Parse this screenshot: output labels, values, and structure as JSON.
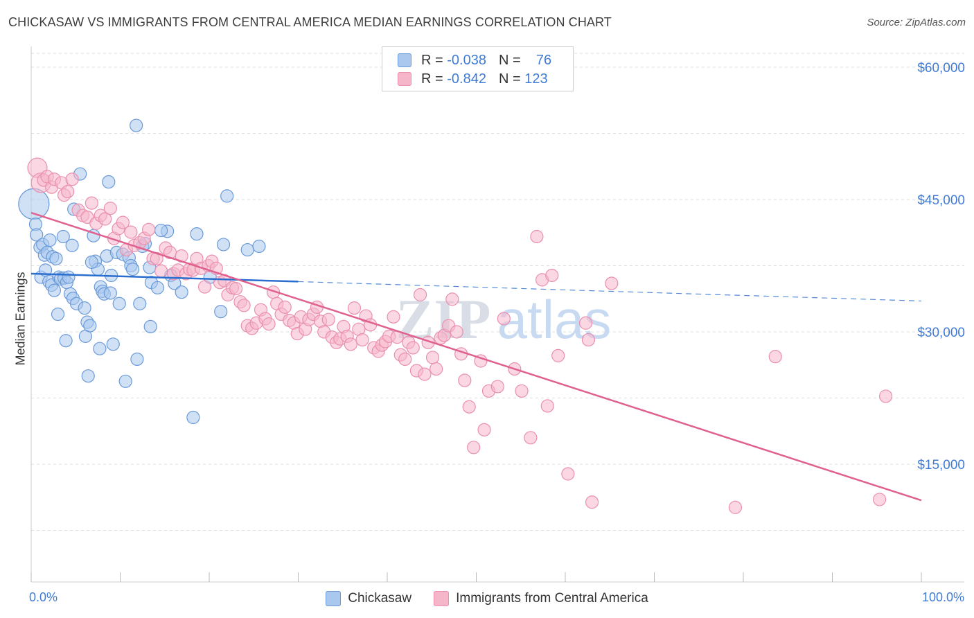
{
  "header": {
    "title": "CHICKASAW VS IMMIGRANTS FROM CENTRAL AMERICA MEDIAN EARNINGS CORRELATION CHART",
    "source": "Source: ZipAtlas.com"
  },
  "legend": {
    "rows": [
      {
        "r_label": "R =",
        "r_value": "-0.038",
        "n_label": "N =",
        "n_value": "76"
      },
      {
        "r_label": "R =",
        "r_value": "-0.842",
        "n_label": "N =",
        "n_value": "123"
      }
    ]
  },
  "bottom_legend": {
    "items": [
      {
        "label": "Chickasaw"
      },
      {
        "label": "Immigrants from Central America"
      }
    ]
  },
  "colors": {
    "blue_fill": "#aac8ee",
    "blue_stroke": "#6a9ad8",
    "blue_line": "#2a6fd0",
    "pink_fill": "#f6b6ca",
    "pink_stroke": "#ea8fae",
    "pink_line": "#e0608f",
    "tick_text": "#3f7bd6",
    "grid": "#dddddd"
  },
  "watermark": {
    "part1": "ZIP",
    "part2": "atlas"
  },
  "chart_data": {
    "type": "scatter",
    "title": "CHICKASAW VS IMMIGRANTS FROM CENTRAL AMERICA MEDIAN EARNINGS CORRELATION CHART",
    "xlabel": "",
    "ylabel": "Median Earnings",
    "x_tick_labels": [
      "0.0%",
      "100.0%"
    ],
    "y_tick_labels": [
      "$15,000",
      "$30,000",
      "$45,000",
      "$60,000"
    ],
    "y_ticks": [
      15000,
      30000,
      45000,
      60000
    ],
    "xlim": [
      0,
      100
    ],
    "ylim": [
      0,
      63000
    ],
    "grid": true,
    "legend_position": "top-center",
    "series": [
      {
        "name": "Chickasaw",
        "R": -0.038,
        "N": 76,
        "trend": {
          "x0": 0,
          "y0": 36600,
          "x1": 30,
          "y1": 35700,
          "dashed_to_x": 100,
          "dashed_y1": 33500
        },
        "points": [
          [
            0.3,
            44500,
            3
          ],
          [
            0.5,
            42200,
            1
          ],
          [
            0.6,
            41000,
            1
          ],
          [
            1.0,
            39600,
            1
          ],
          [
            1.1,
            36200,
            1
          ],
          [
            1.3,
            39900,
            1
          ],
          [
            1.5,
            38700,
            1
          ],
          [
            1.6,
            37000,
            1
          ],
          [
            1.8,
            39000,
            1
          ],
          [
            2.0,
            35700,
            1
          ],
          [
            2.1,
            40400,
            1
          ],
          [
            2.3,
            35300,
            1
          ],
          [
            2.4,
            38500,
            1
          ],
          [
            2.6,
            34700,
            1
          ],
          [
            2.8,
            38300,
            1
          ],
          [
            3.0,
            32000,
            1
          ],
          [
            3.1,
            36200,
            1
          ],
          [
            3.3,
            36000,
            1
          ],
          [
            3.6,
            40800,
            1
          ],
          [
            3.7,
            36100,
            1
          ],
          [
            3.9,
            29000,
            1
          ],
          [
            4.0,
            35600,
            1
          ],
          [
            4.2,
            36200,
            1
          ],
          [
            4.4,
            34300,
            1
          ],
          [
            4.6,
            39800,
            1
          ],
          [
            4.7,
            33800,
            1
          ],
          [
            4.8,
            43900,
            1
          ],
          [
            5.1,
            33200,
            1
          ],
          [
            5.5,
            47900,
            1
          ],
          [
            6.0,
            32700,
            1
          ],
          [
            6.1,
            29500,
            1
          ],
          [
            6.3,
            31100,
            1
          ],
          [
            6.4,
            25000,
            1
          ],
          [
            6.6,
            30700,
            1
          ],
          [
            7.0,
            40900,
            1
          ],
          [
            7.2,
            38000,
            1
          ],
          [
            7.5,
            37100,
            1
          ],
          [
            7.7,
            28100,
            1
          ],
          [
            7.8,
            35100,
            1
          ],
          [
            8.0,
            34600,
            1
          ],
          [
            8.2,
            34300,
            1
          ],
          [
            8.5,
            38600,
            1
          ],
          [
            8.7,
            47000,
            1
          ],
          [
            8.9,
            34400,
            1
          ],
          [
            9.2,
            28600,
            1
          ],
          [
            9.6,
            39000,
            1
          ],
          [
            9.9,
            33200,
            1
          ],
          [
            10.3,
            38800,
            1
          ],
          [
            10.6,
            24400,
            1
          ],
          [
            11.0,
            38400,
            1
          ],
          [
            11.2,
            37500,
            1
          ],
          [
            11.4,
            37100,
            1
          ],
          [
            11.8,
            53400,
            1
          ],
          [
            11.9,
            26900,
            1
          ],
          [
            12.2,
            33200,
            1
          ],
          [
            12.5,
            39700,
            1
          ],
          [
            12.8,
            40000,
            1
          ],
          [
            13.3,
            37300,
            1
          ],
          [
            13.4,
            30600,
            1
          ],
          [
            13.5,
            35600,
            1
          ],
          [
            14.2,
            35000,
            1
          ],
          [
            15.3,
            41400,
            1
          ],
          [
            15.7,
            36400,
            1
          ],
          [
            16.1,
            35500,
            1
          ],
          [
            16.9,
            34500,
            1
          ],
          [
            18.2,
            20300,
            1
          ],
          [
            18.6,
            41100,
            1
          ],
          [
            20.1,
            36200,
            1
          ],
          [
            21.3,
            32300,
            1
          ],
          [
            21.6,
            39900,
            1
          ],
          [
            22.0,
            45400,
            1
          ],
          [
            24.3,
            39300,
            1
          ],
          [
            25.6,
            39700,
            1
          ],
          [
            14.6,
            41500,
            1
          ],
          [
            6.8,
            37900,
            1
          ],
          [
            9.0,
            36400,
            1
          ]
        ]
      },
      {
        "name": "Immigrants from Central America",
        "R": -0.842,
        "N": 123,
        "trend": {
          "x0": 0,
          "y0": 43500,
          "x1": 100,
          "y1": 10900
        },
        "points": [
          [
            0.7,
            48600,
            2
          ],
          [
            1.1,
            46900,
            2
          ],
          [
            1.4,
            47200,
            1
          ],
          [
            1.8,
            47600,
            1
          ],
          [
            2.3,
            46400,
            1
          ],
          [
            2.6,
            47300,
            1
          ],
          [
            3.4,
            46900,
            1
          ],
          [
            3.7,
            45500,
            1
          ],
          [
            4.1,
            45900,
            1
          ],
          [
            4.6,
            47300,
            1
          ],
          [
            5.3,
            43800,
            1
          ],
          [
            5.8,
            43200,
            1
          ],
          [
            6.3,
            43000,
            1
          ],
          [
            6.8,
            44600,
            1
          ],
          [
            7.3,
            42300,
            1
          ],
          [
            7.8,
            43200,
            1
          ],
          [
            8.3,
            42800,
            1
          ],
          [
            8.9,
            44000,
            1
          ],
          [
            9.3,
            40600,
            1
          ],
          [
            9.8,
            41700,
            1
          ],
          [
            10.3,
            42400,
            1
          ],
          [
            10.7,
            39300,
            1
          ],
          [
            11.2,
            41300,
            1
          ],
          [
            11.6,
            39800,
            1
          ],
          [
            12.2,
            40100,
            1
          ],
          [
            12.7,
            40600,
            1
          ],
          [
            13.2,
            41600,
            1
          ],
          [
            13.7,
            38300,
            1
          ],
          [
            14.1,
            38300,
            1
          ],
          [
            14.6,
            36900,
            1
          ],
          [
            15.1,
            39500,
            1
          ],
          [
            15.6,
            39000,
            1
          ],
          [
            16.0,
            36600,
            1
          ],
          [
            16.5,
            37000,
            1
          ],
          [
            16.9,
            38600,
            1
          ],
          [
            17.4,
            36600,
            1
          ],
          [
            17.8,
            37100,
            1
          ],
          [
            18.2,
            37000,
            1
          ],
          [
            18.6,
            38300,
            1
          ],
          [
            19.1,
            37200,
            1
          ],
          [
            19.5,
            35100,
            1
          ],
          [
            19.9,
            37500,
            1
          ],
          [
            20.3,
            38000,
            1
          ],
          [
            20.8,
            37200,
            1
          ],
          [
            21.2,
            35600,
            1
          ],
          [
            21.7,
            35800,
            1
          ],
          [
            22.1,
            34200,
            1
          ],
          [
            22.6,
            35000,
            1
          ],
          [
            23.0,
            34900,
            1
          ],
          [
            23.5,
            33400,
            1
          ],
          [
            23.9,
            33000,
            1
          ],
          [
            24.3,
            30700,
            1
          ],
          [
            24.8,
            30400,
            1
          ],
          [
            25.3,
            31000,
            1
          ],
          [
            25.8,
            32500,
            1
          ],
          [
            26.3,
            31500,
            1
          ],
          [
            26.7,
            30900,
            1
          ],
          [
            27.2,
            34500,
            1
          ],
          [
            27.6,
            33200,
            1
          ],
          [
            28.1,
            32000,
            1
          ],
          [
            28.5,
            32800,
            1
          ],
          [
            29.0,
            31300,
            1
          ],
          [
            29.5,
            31000,
            1
          ],
          [
            29.9,
            29800,
            1
          ],
          [
            30.3,
            31700,
            1
          ],
          [
            30.8,
            30300,
            1
          ],
          [
            31.2,
            31400,
            1
          ],
          [
            31.7,
            32000,
            1
          ],
          [
            32.1,
            32800,
            1
          ],
          [
            32.5,
            31200,
            1
          ],
          [
            32.9,
            30000,
            1
          ],
          [
            33.4,
            31400,
            1
          ],
          [
            33.8,
            29400,
            1
          ],
          [
            34.3,
            28800,
            1
          ],
          [
            34.7,
            29200,
            1
          ],
          [
            35.1,
            30600,
            1
          ],
          [
            35.5,
            29500,
            1
          ],
          [
            35.9,
            28600,
            1
          ],
          [
            36.3,
            32700,
            1
          ],
          [
            36.8,
            30300,
            1
          ],
          [
            37.2,
            29100,
            1
          ],
          [
            37.6,
            31800,
            1
          ],
          [
            38.1,
            30800,
            1
          ],
          [
            38.5,
            28200,
            1
          ],
          [
            39.0,
            27800,
            1
          ],
          [
            39.4,
            28500,
            1
          ],
          [
            39.8,
            28900,
            1
          ],
          [
            40.2,
            29500,
            1
          ],
          [
            40.7,
            31700,
            1
          ],
          [
            41.1,
            29400,
            1
          ],
          [
            41.5,
            27400,
            1
          ],
          [
            42.0,
            26900,
            1
          ],
          [
            42.4,
            28800,
            1
          ],
          [
            42.9,
            28200,
            1
          ],
          [
            43.3,
            25600,
            1
          ],
          [
            43.7,
            34200,
            1
          ],
          [
            44.2,
            25200,
            1
          ],
          [
            44.6,
            28800,
            1
          ],
          [
            45.1,
            27100,
            1
          ],
          [
            45.5,
            25800,
            1
          ],
          [
            46.0,
            29300,
            1
          ],
          [
            46.4,
            29600,
            1
          ],
          [
            46.9,
            30700,
            1
          ],
          [
            47.3,
            33700,
            1
          ],
          [
            47.8,
            30000,
            1
          ],
          [
            48.3,
            27500,
            1
          ],
          [
            48.7,
            24500,
            1
          ],
          [
            49.2,
            21500,
            1
          ],
          [
            49.7,
            16900,
            1
          ],
          [
            50.5,
            26700,
            1
          ],
          [
            50.9,
            18900,
            1
          ],
          [
            51.4,
            23300,
            1
          ],
          [
            52.4,
            23800,
            1
          ],
          [
            53.1,
            31500,
            1
          ],
          [
            54.3,
            25800,
            1
          ],
          [
            55.1,
            23300,
            1
          ],
          [
            56.1,
            18000,
            1
          ],
          [
            56.8,
            40800,
            1
          ],
          [
            57.4,
            35900,
            1
          ],
          [
            58.0,
            21600,
            1
          ],
          [
            58.5,
            36400,
            1
          ],
          [
            59.2,
            27300,
            1
          ],
          [
            60.3,
            13900,
            1
          ],
          [
            62.3,
            31000,
            1
          ],
          [
            62.6,
            29100,
            1
          ],
          [
            63.0,
            10700,
            1
          ],
          [
            65.2,
            35500,
            1
          ],
          [
            79.1,
            10100,
            1
          ],
          [
            83.6,
            27200,
            1
          ],
          [
            95.3,
            11000,
            1
          ],
          [
            96.0,
            22700,
            1
          ]
        ]
      }
    ]
  }
}
